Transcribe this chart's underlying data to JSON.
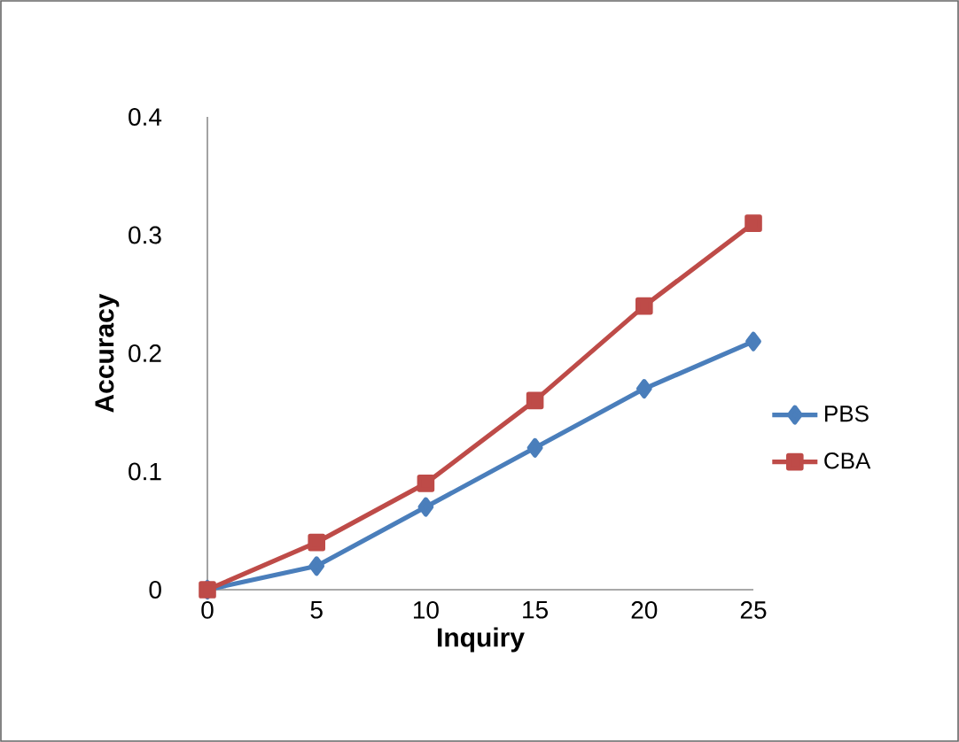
{
  "chart_data": {
    "type": "line",
    "xlabel": "Inquiry",
    "ylabel": "Accuracy",
    "x": [
      0,
      5,
      10,
      15,
      20,
      25
    ],
    "series": [
      {
        "name": "PBS",
        "color": "#4a7ebb",
        "marker": "diamond",
        "values": [
          0,
          0.02,
          0.07,
          0.12,
          0.17,
          0.21
        ]
      },
      {
        "name": "CBA",
        "color": "#be4b48",
        "marker": "square",
        "values": [
          0,
          0.04,
          0.09,
          0.16,
          0.24,
          0.31
        ]
      }
    ],
    "xlim": [
      0,
      25
    ],
    "ylim": [
      0,
      0.4
    ],
    "xticks": [
      0,
      5,
      10,
      15,
      20,
      25
    ],
    "yticks": [
      0,
      {
        "value": 0.1,
        "label": "0.1"
      },
      {
        "value": 0.2,
        "label": "0.2"
      },
      {
        "value": 0.3,
        "label": "0.3"
      },
      {
        "value": 0.4,
        "label": "0.4"
      }
    ],
    "grid": false,
    "legend": "right",
    "line_style": "solid"
  }
}
